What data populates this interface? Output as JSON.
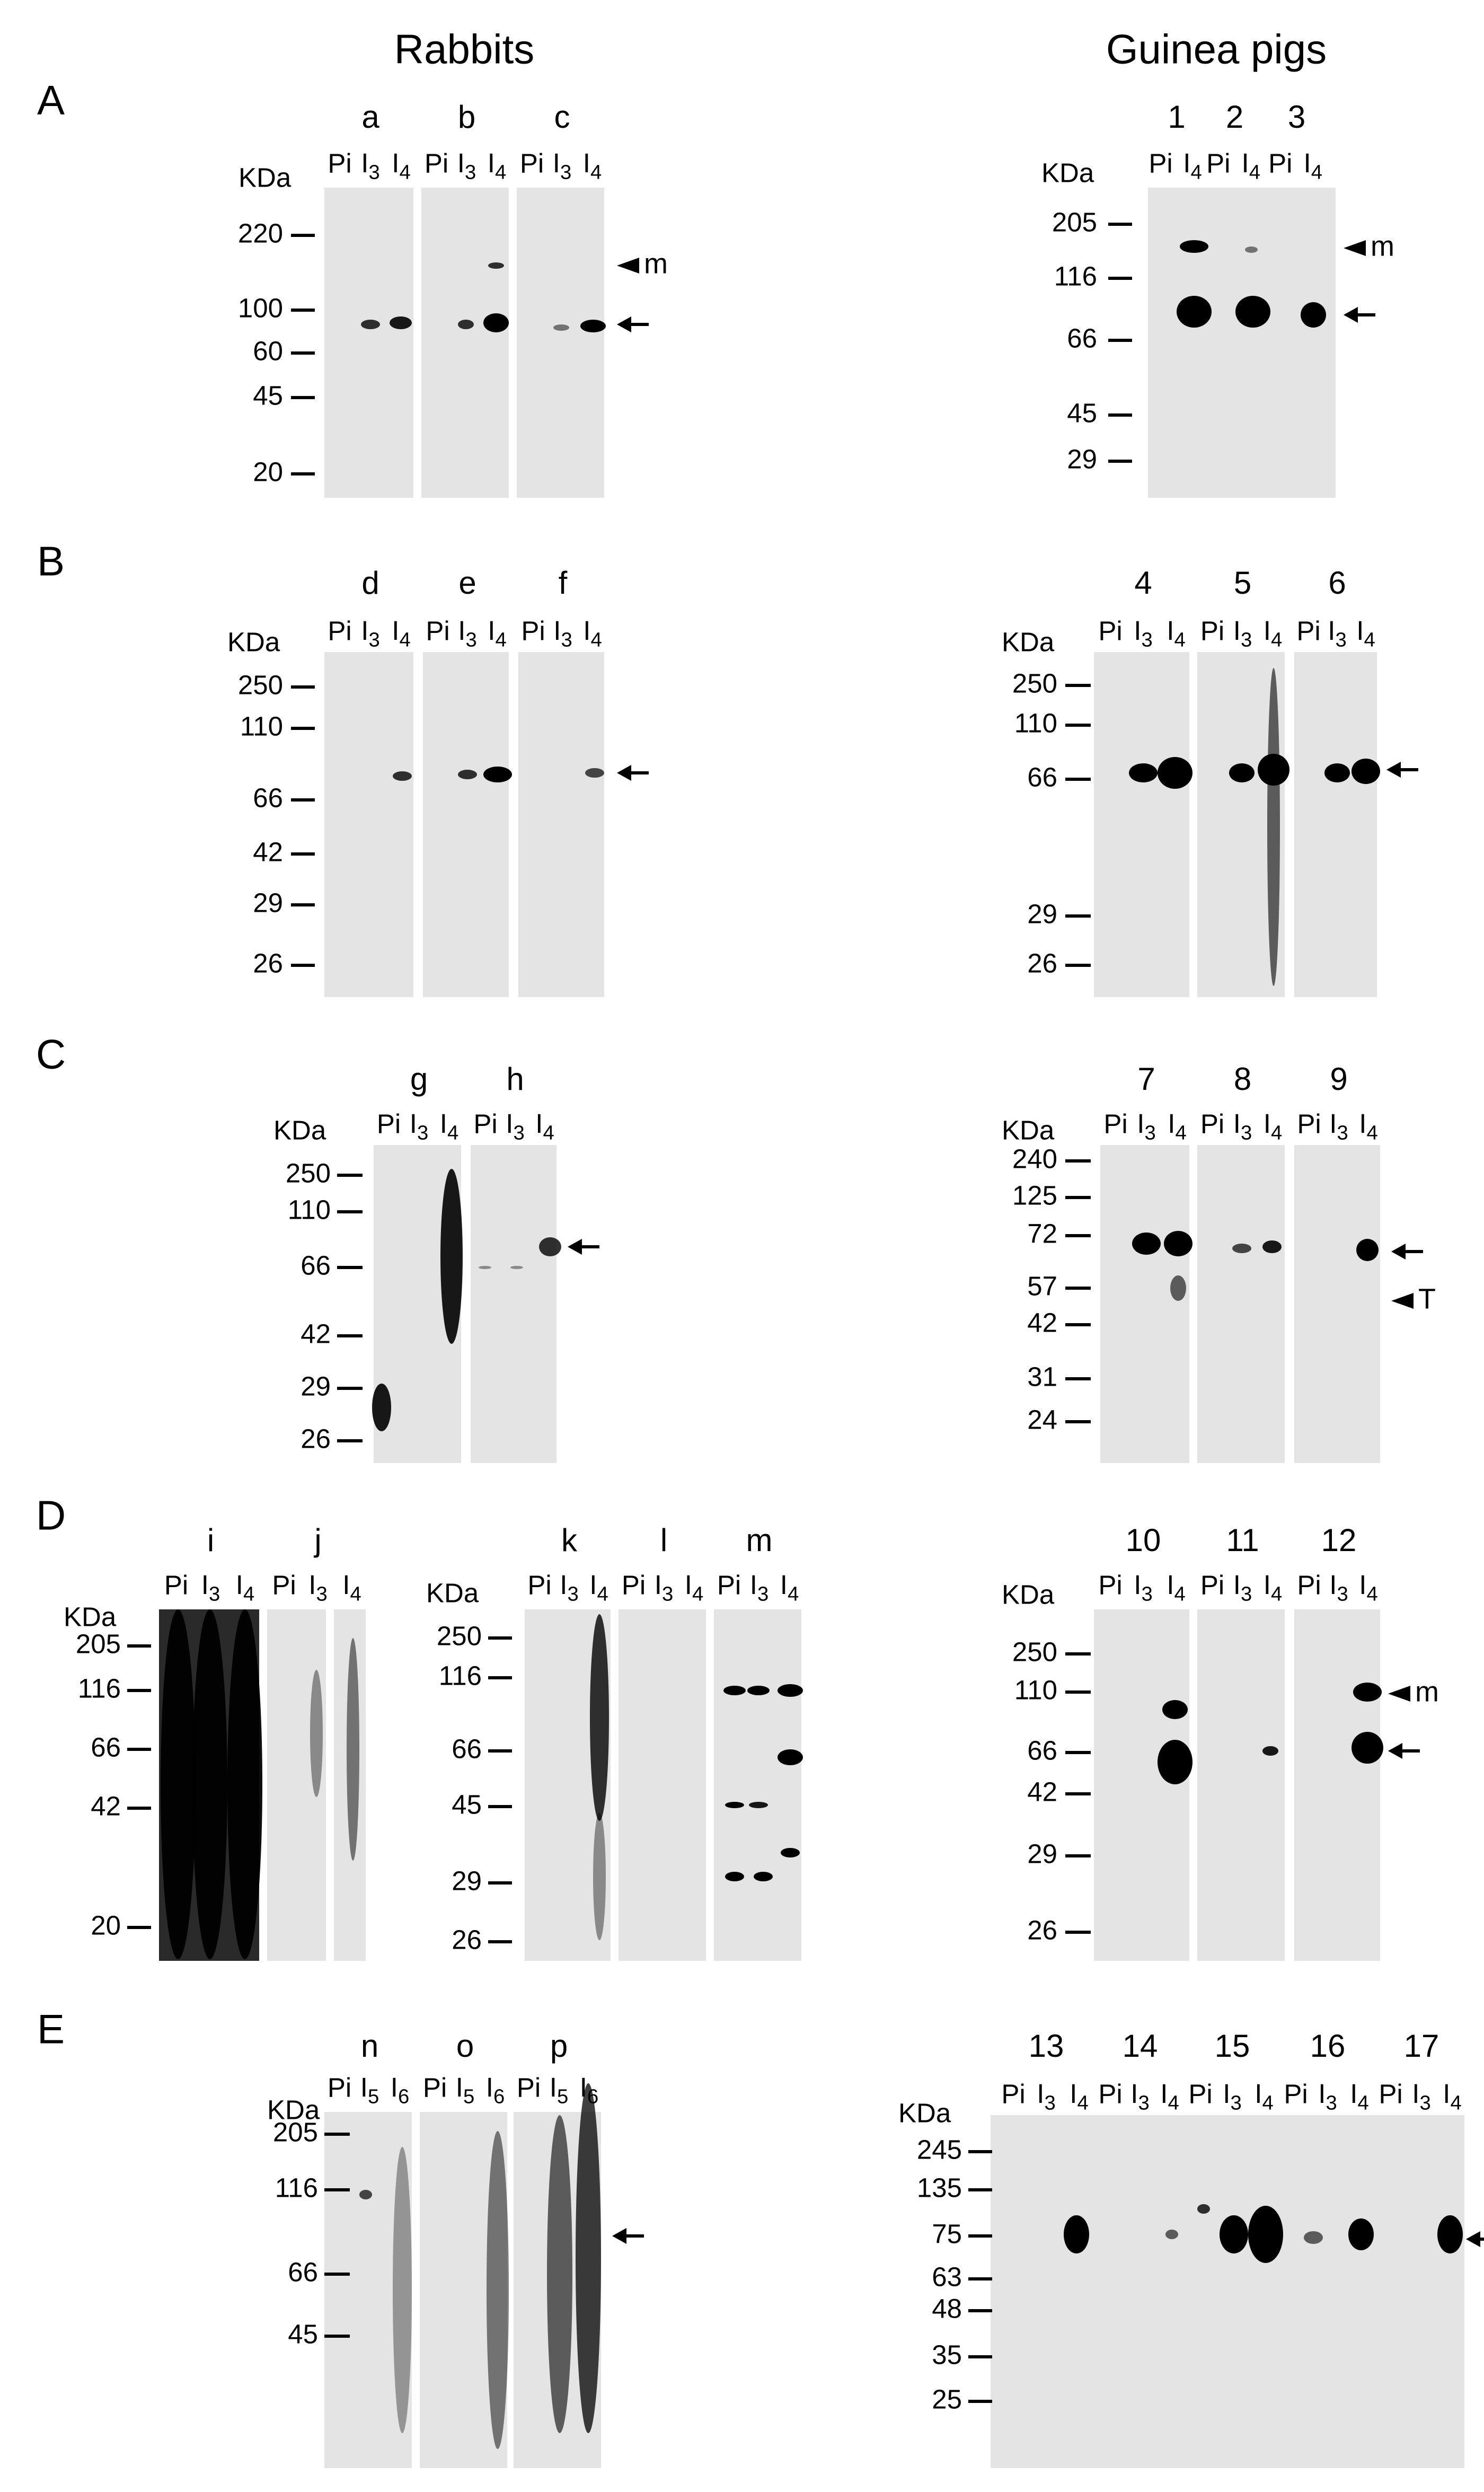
{
  "headers": {
    "left": "Rabbits",
    "right": "Guinea pigs"
  },
  "panels": [
    {
      "letter": "A",
      "groups": [
        {
          "kda": "KDa",
          "markers": [
            "220",
            "100",
            "60",
            "45",
            "20"
          ],
          "strips": [
            {
              "label": "a",
              "lanes": [
                "Pi",
                "I3",
                "I4"
              ]
            },
            {
              "label": "b",
              "lanes": [
                "Pi",
                "I3",
                "I4"
              ]
            },
            {
              "label": "c",
              "lanes": [
                "Pi",
                "I3",
                "I4"
              ]
            }
          ],
          "annotations": [
            "m"
          ]
        },
        {
          "kda": "KDa",
          "markers": [
            "205",
            "116",
            "66",
            "45",
            "29"
          ],
          "strips": [
            {
              "label": "1",
              "lanes": [
                "Pi",
                "I4"
              ]
            },
            {
              "label": "2",
              "lanes": [
                "Pi",
                "I4"
              ]
            },
            {
              "label": "3",
              "lanes": [
                "Pi",
                "I4"
              ]
            }
          ],
          "annotations": [
            "m"
          ]
        }
      ]
    },
    {
      "letter": "B",
      "groups": [
        {
          "kda": "KDa",
          "markers": [
            "250",
            "110",
            "66",
            "42",
            "29",
            "26"
          ],
          "strips": [
            {
              "label": "d",
              "lanes": [
                "Pi",
                "I3",
                "I4"
              ]
            },
            {
              "label": "e",
              "lanes": [
                "Pi",
                "I3",
                "I4"
              ]
            },
            {
              "label": "f",
              "lanes": [
                "Pi",
                "I3",
                "I4"
              ]
            }
          ]
        },
        {
          "kda": "KDa",
          "markers": [
            "250",
            "110",
            "66",
            "29",
            "26"
          ],
          "strips": [
            {
              "label": "4",
              "lanes": [
                "Pi",
                "I3",
                "I4"
              ]
            },
            {
              "label": "5",
              "lanes": [
                "Pi",
                "I3",
                "I4"
              ]
            },
            {
              "label": "6",
              "lanes": [
                "Pi",
                "I3",
                "I4"
              ]
            }
          ]
        }
      ]
    },
    {
      "letter": "C",
      "groups": [
        {
          "kda": "KDa",
          "markers": [
            "250",
            "110",
            "66",
            "42",
            "29",
            "26"
          ],
          "strips": [
            {
              "label": "g",
              "lanes": [
                "Pi",
                "I3",
                "I4"
              ]
            },
            {
              "label": "h",
              "lanes": [
                "Pi",
                "I3",
                "I4"
              ]
            }
          ]
        },
        {
          "kda": "KDa",
          "markers": [
            "240",
            "125",
            "72",
            "57",
            "42",
            "31",
            "24"
          ],
          "strips": [
            {
              "label": "7",
              "lanes": [
                "Pi",
                "I3",
                "I4"
              ]
            },
            {
              "label": "8",
              "lanes": [
                "Pi",
                "I3",
                "I4"
              ]
            },
            {
              "label": "9",
              "lanes": [
                "Pi",
                "I3",
                "I4"
              ]
            }
          ],
          "annotations": [
            "T"
          ]
        }
      ]
    },
    {
      "letter": "D",
      "groups": [
        {
          "kda": "KDa",
          "markers": [
            "205",
            "116",
            "66",
            "42",
            "20"
          ],
          "strips": [
            {
              "label": "i",
              "lanes": [
                "Pi",
                "I3",
                "I4"
              ]
            },
            {
              "label": "j",
              "lanes": [
                "Pi",
                "I3",
                "I4"
              ]
            }
          ]
        },
        {
          "kda": "KDa",
          "markers": [
            "250",
            "116",
            "66",
            "45",
            "29",
            "26"
          ],
          "strips": [
            {
              "label": "k",
              "lanes": [
                "Pi",
                "I3",
                "I4"
              ]
            },
            {
              "label": "l",
              "lanes": [
                "Pi",
                "I3",
                "I4"
              ]
            },
            {
              "label": "m",
              "lanes": [
                "Pi",
                "I3",
                "I4"
              ]
            }
          ]
        },
        {
          "kda": "KDa",
          "markers": [
            "250",
            "110",
            "66",
            "42",
            "29",
            "26"
          ],
          "strips": [
            {
              "label": "10",
              "lanes": [
                "Pi",
                "I3",
                "I4"
              ]
            },
            {
              "label": "11",
              "lanes": [
                "Pi",
                "I3",
                "I4"
              ]
            },
            {
              "label": "12",
              "lanes": [
                "Pi",
                "I3",
                "I4"
              ]
            }
          ],
          "annotations": [
            "m"
          ]
        }
      ]
    },
    {
      "letter": "E",
      "groups": [
        {
          "kda": "KDa",
          "markers": [
            "205",
            "116",
            "66",
            "45"
          ],
          "strips": [
            {
              "label": "n",
              "lanes": [
                "Pi",
                "I5",
                "I6"
              ]
            },
            {
              "label": "o",
              "lanes": [
                "Pi",
                "I5",
                "I6"
              ]
            },
            {
              "label": "p",
              "lanes": [
                "Pi",
                "I5",
                "I6"
              ]
            }
          ]
        },
        {
          "kda": "KDa",
          "markers": [
            "245",
            "135",
            "75",
            "63",
            "48",
            "35",
            "25"
          ],
          "strips": [
            {
              "label": "13",
              "lanes": [
                "Pi",
                "I3",
                "I4"
              ]
            },
            {
              "label": "14",
              "lanes": [
                "Pi",
                "I3",
                "I4"
              ]
            },
            {
              "label": "15",
              "lanes": [
                "Pi",
                "I3",
                "I4"
              ]
            },
            {
              "label": "16",
              "lanes": [
                "Pi",
                "I3",
                "I4"
              ]
            },
            {
              "label": "17",
              "lanes": [
                "Pi",
                "I3",
                "I4"
              ]
            }
          ]
        }
      ]
    }
  ]
}
